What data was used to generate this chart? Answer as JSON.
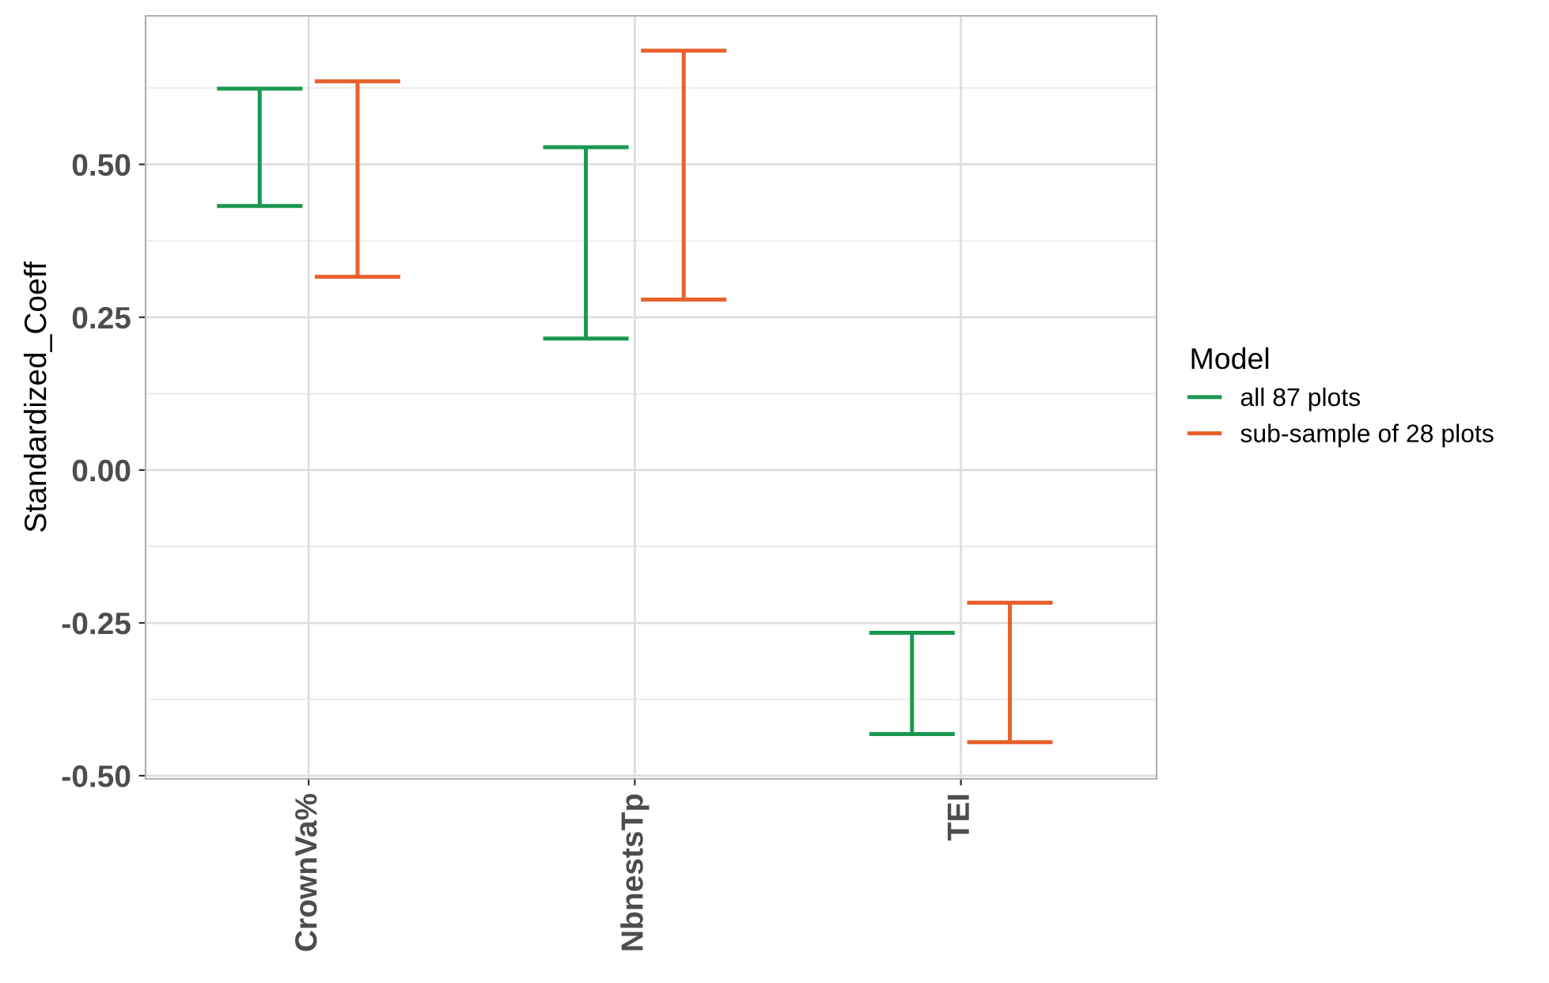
{
  "chart_data": {
    "type": "bar",
    "ylabel": "Standardized_Coeff",
    "legend_title": "Model",
    "categories": [
      "CrownVa%",
      "NbnestsTp",
      "TEI"
    ],
    "series": [
      {
        "name": "all 87 plots",
        "color": "#1a9850",
        "base": [
          0.432,
          0.215,
          -0.432
        ],
        "values": [
          0.192,
          0.313,
          0.166
        ]
      },
      {
        "name": "sub-sample of 28 plots",
        "color": "#e8602c",
        "base": [
          0.316,
          0.279,
          -0.445
        ],
        "values": [
          0.32,
          0.407,
          0.228
        ]
      }
    ],
    "ylim": [
      -0.505,
      0.743
    ],
    "yticks": [
      {
        "value": -0.5,
        "label": "-0.50"
      },
      {
        "value": -0.25,
        "label": "-0.25"
      },
      {
        "value": 0,
        "label": "0.00"
      },
      {
        "value": 0.25,
        "label": "0.25"
      },
      {
        "value": 0.5,
        "label": "0.50"
      }
    ],
    "grid": true,
    "legend": "right"
  }
}
